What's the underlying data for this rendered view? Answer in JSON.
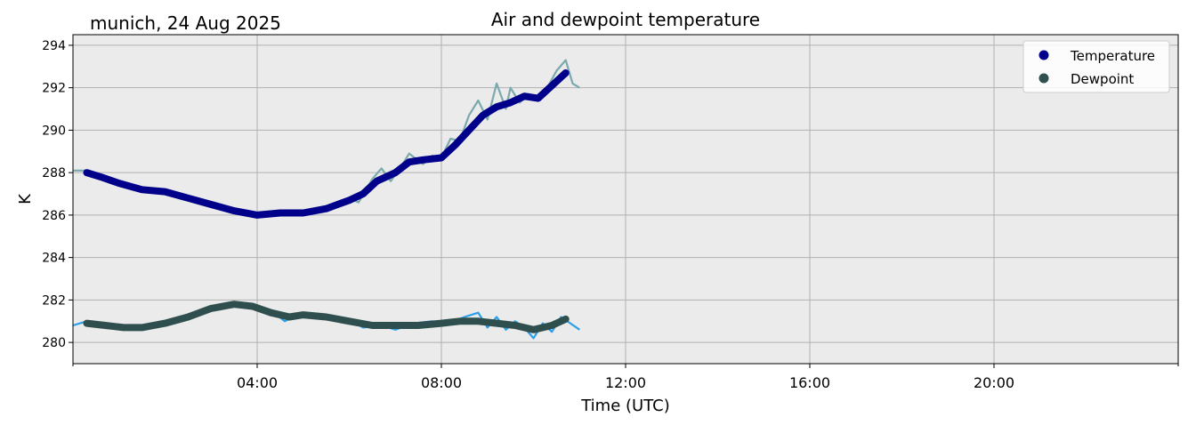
{
  "chart_data": {
    "type": "line",
    "title": "Air and dewpoint temperature",
    "subtitle": "munich, 24 Aug 2025",
    "xlabel": "Time (UTC)",
    "ylabel": "K",
    "x_unit": "hours (UTC)",
    "xlim": [
      0,
      24
    ],
    "ylim": [
      279,
      294.5
    ],
    "x_ticks": [
      4,
      8,
      12,
      16,
      20
    ],
    "x_tick_labels": [
      "04:00",
      "08:00",
      "12:00",
      "16:00",
      "20:00"
    ],
    "y_ticks": [
      280,
      282,
      284,
      286,
      288,
      290,
      292,
      294
    ],
    "y_tick_labels": [
      "280",
      "282",
      "284",
      "286",
      "288",
      "290",
      "292",
      "294"
    ],
    "grid": true,
    "legend_position": "top-right",
    "colors": {
      "plot_background": "#ebebeb",
      "grid": "#b0b0b0",
      "temperature_raw": "#7aa9ad",
      "temperature_smooth": "#00008b",
      "dewpoint_raw": "#2b9fe8",
      "dewpoint_smooth": "#2f4f4f"
    },
    "series": [
      {
        "name": "Temperature",
        "role": "smoothed",
        "x": [
          0.3,
          0.6,
          1.0,
          1.5,
          2.0,
          2.5,
          3.0,
          3.5,
          4.0,
          4.5,
          5.0,
          5.5,
          6.0,
          6.3,
          6.6,
          7.0,
          7.3,
          7.6,
          8.0,
          8.3,
          8.6,
          8.9,
          9.2,
          9.5,
          9.8,
          10.1,
          10.4,
          10.7
        ],
        "values": [
          288.0,
          287.8,
          287.5,
          287.2,
          287.1,
          286.8,
          286.5,
          286.2,
          286.0,
          286.1,
          286.1,
          286.3,
          286.7,
          287.0,
          287.6,
          288.0,
          288.5,
          288.6,
          288.7,
          289.3,
          290.0,
          290.7,
          291.1,
          291.3,
          291.6,
          291.5,
          292.1,
          292.7
        ]
      },
      {
        "name": "Dewpoint",
        "role": "smoothed",
        "x": [
          0.3,
          0.7,
          1.1,
          1.5,
          2.0,
          2.5,
          3.0,
          3.5,
          3.9,
          4.3,
          4.7,
          5.0,
          5.5,
          6.0,
          6.5,
          7.0,
          7.5,
          8.0,
          8.4,
          8.8,
          9.2,
          9.6,
          10.0,
          10.4,
          10.7
        ],
        "values": [
          280.9,
          280.8,
          280.7,
          280.7,
          280.9,
          281.2,
          281.6,
          281.8,
          281.7,
          281.4,
          281.2,
          281.3,
          281.2,
          281.0,
          280.8,
          280.8,
          280.8,
          280.9,
          281.0,
          281.0,
          280.9,
          280.8,
          280.6,
          280.8,
          281.1
        ]
      },
      {
        "role": "raw",
        "x": [
          0.0,
          0.3,
          0.6,
          1.0,
          1.5,
          2.0,
          2.5,
          3.0,
          3.5,
          4.0,
          4.5,
          5.0,
          5.5,
          6.0,
          6.2,
          6.5,
          6.7,
          6.9,
          7.1,
          7.3,
          7.6,
          7.8,
          8.0,
          8.2,
          8.4,
          8.6,
          8.8,
          9.0,
          9.2,
          9.4,
          9.5,
          9.7,
          9.9,
          10.1,
          10.3,
          10.5,
          10.7,
          10.85,
          11.0
        ],
        "values": [
          288.1,
          288.1,
          287.7,
          287.5,
          287.2,
          287.1,
          286.7,
          286.5,
          286.1,
          286.0,
          286.2,
          286.1,
          286.4,
          286.8,
          286.6,
          287.7,
          288.2,
          287.6,
          288.2,
          288.9,
          288.4,
          288.8,
          288.7,
          289.6,
          289.5,
          290.7,
          291.4,
          290.5,
          292.2,
          291.0,
          292.0,
          291.3,
          291.7,
          291.4,
          292.0,
          292.8,
          293.3,
          292.2,
          292.0
        ]
      },
      {
        "role": "raw",
        "x": [
          0.0,
          0.3,
          0.6,
          1.0,
          1.5,
          2.0,
          2.5,
          3.0,
          3.5,
          3.9,
          4.3,
          4.6,
          5.0,
          5.3,
          5.7,
          6.0,
          6.3,
          6.7,
          7.0,
          7.4,
          7.8,
          8.1,
          8.5,
          8.8,
          9.0,
          9.2,
          9.4,
          9.6,
          9.8,
          10.0,
          10.2,
          10.4,
          10.6,
          10.8,
          11.0
        ],
        "values": [
          280.8,
          281.0,
          280.8,
          280.7,
          280.6,
          280.9,
          281.1,
          281.6,
          281.8,
          281.7,
          281.5,
          281.0,
          281.4,
          281.3,
          281.0,
          281.1,
          280.7,
          280.8,
          280.6,
          280.9,
          281.0,
          280.8,
          281.2,
          281.4,
          280.7,
          281.2,
          280.6,
          281.0,
          280.7,
          280.2,
          280.9,
          280.5,
          281.2,
          280.9,
          280.6
        ]
      }
    ]
  }
}
